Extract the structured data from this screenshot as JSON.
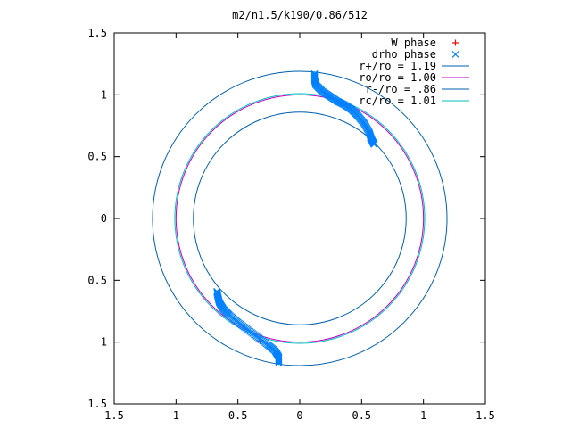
{
  "chart_data": {
    "type": "scatter",
    "title": "m2/n1.5/k190/0.86/512",
    "xlabel": "",
    "ylabel": "",
    "xlim": [
      -1.5,
      1.5
    ],
    "ylim": [
      -1.5,
      1.5
    ],
    "x_ticks": [
      {
        "value": -1.5,
        "label": "1.5"
      },
      {
        "value": -1.0,
        "label": "1"
      },
      {
        "value": -0.5,
        "label": "0.5"
      },
      {
        "value": 0.0,
        "label": "0"
      },
      {
        "value": 0.5,
        "label": "0.5"
      },
      {
        "value": 1.0,
        "label": "1"
      },
      {
        "value": 1.5,
        "label": "1.5"
      }
    ],
    "y_ticks": [
      {
        "value": 1.5,
        "label": "1.5"
      },
      {
        "value": 1.0,
        "label": "1"
      },
      {
        "value": 0.5,
        "label": "0.5"
      },
      {
        "value": 0.0,
        "label": "0"
      },
      {
        "value": -0.5,
        "label": "0.5"
      },
      {
        "value": -1.0,
        "label": "1"
      },
      {
        "value": -1.5,
        "label": "1.5"
      }
    ],
    "grid": false,
    "legend_position": "top-right",
    "series": [
      {
        "name": "W phase",
        "kind": "points",
        "marker": "plus",
        "color": "#ff0000",
        "points": [
          [
            0.57,
            0.63
          ],
          [
            -0.32,
            -0.99
          ]
        ]
      },
      {
        "name": "drho phase",
        "kind": "points",
        "marker": "x",
        "color": "#0080ff",
        "points": [
          [
            0.12,
            1.17
          ],
          [
            0.12,
            1.12
          ],
          [
            0.13,
            1.08
          ],
          [
            0.18,
            1.03
          ],
          [
            0.24,
            0.99
          ],
          [
            0.3,
            0.95
          ],
          [
            0.36,
            0.92
          ],
          [
            0.42,
            0.88
          ],
          [
            0.47,
            0.83
          ],
          [
            0.52,
            0.77
          ],
          [
            0.56,
            0.7
          ],
          [
            0.58,
            0.64
          ],
          [
            0.6,
            0.6
          ],
          [
            -0.67,
            -0.59
          ],
          [
            -0.66,
            -0.64
          ],
          [
            -0.65,
            -0.68
          ],
          [
            -0.62,
            -0.73
          ],
          [
            -0.57,
            -0.78
          ],
          [
            -0.5,
            -0.84
          ],
          [
            -0.42,
            -0.9
          ],
          [
            -0.34,
            -0.96
          ],
          [
            -0.26,
            -1.02
          ],
          [
            -0.2,
            -1.07
          ],
          [
            -0.17,
            -1.12
          ],
          [
            -0.17,
            -1.17
          ]
        ]
      },
      {
        "name": "r+/ro = 1.19",
        "kind": "circle",
        "radius": 1.19,
        "color": "#0060ad"
      },
      {
        "name": "ro/ro = 1.00",
        "kind": "circle",
        "radius": 1.0,
        "color": "#c000c0"
      },
      {
        "name": "r-/ro = .86",
        "kind": "circle",
        "radius": 0.86,
        "color": "#0060ad"
      },
      {
        "name": "rc/ro = 1.01",
        "kind": "circle",
        "radius": 1.01,
        "color": "#00c0c0"
      }
    ]
  }
}
